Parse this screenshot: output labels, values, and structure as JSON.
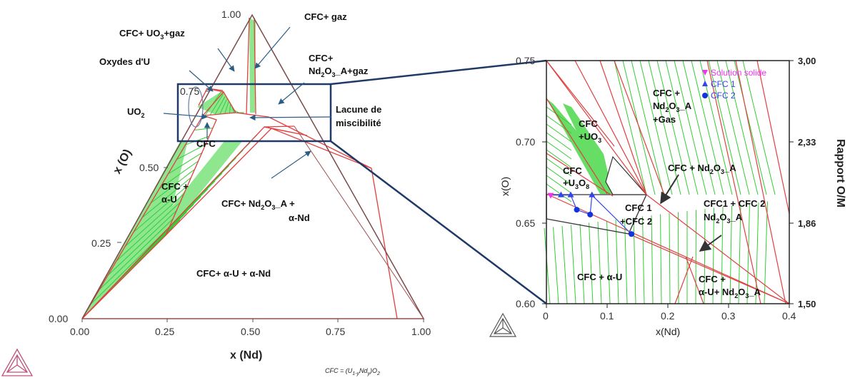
{
  "chart_data": [
    {
      "type": "ternary phase diagram",
      "vertex_top_label": "1.00",
      "x_ticks": [
        "0.00",
        "0.25",
        "0.50",
        "0.75",
        "1.00"
      ],
      "y_ticks": [
        "0.25",
        "0.50",
        "0.75",
        "1.00"
      ],
      "y_origin": "0.00",
      "xlabel": "x (Nd)",
      "ylabel": "x (O)",
      "regions": [
        "CFC+ gaz",
        "CFC+ UO3+gaz",
        "Oxydes d'U",
        "CFC+ Nd2O3_A+gaz",
        "UO2",
        "Lacune de miscibilité",
        "CFC",
        "CFC + α-U",
        "CFC+ Nd2O3_A + α-Nd",
        "CFC+ α-U + α-Nd"
      ],
      "footnote": "CFC = (U1-yNdy)O2",
      "colors": {
        "tie_lines": "#33cc33",
        "boundaries": "#e04040",
        "frame": "#7a4a4a",
        "zoom_box": "#1f3a66"
      }
    },
    {
      "type": "scatter",
      "xlabel": "x(Nd)",
      "ylabel": "x(O)",
      "right_axis_label": "Rapport O/M",
      "x_ticks": [
        "0",
        "0.1",
        "0.2",
        "0.3",
        "0.4"
      ],
      "y_ticks": [
        "0.60",
        "0.65",
        "0.70",
        "0.75"
      ],
      "right_ticks": [
        "1,50",
        "1,86",
        "2,33",
        "3,00"
      ],
      "xlim": [
        0,
        0.4
      ],
      "ylim": [
        0.6,
        0.75
      ],
      "legend_position": "top-right",
      "series": [
        {
          "name": "Solution solide",
          "marker": "triangle-down",
          "color": "#ee33ee",
          "points": [
            [
              0.007,
              0.667
            ]
          ]
        },
        {
          "name": "CFC 1",
          "marker": "triangle-up",
          "color": "#3344ee",
          "points": [
            [
              0.024,
              0.667
            ],
            [
              0.04,
              0.667
            ],
            [
              0.075,
              0.667
            ]
          ]
        },
        {
          "name": "CFC 2",
          "marker": "circle",
          "color": "#1133dd",
          "points": [
            [
              0.05,
              0.658
            ],
            [
              0.072,
              0.655
            ],
            [
              0.14,
              0.643
            ]
          ]
        }
      ],
      "regions": [
        "CFC + Nd2O3_A +Gas",
        "CFC +UO3",
        "CFC + Nd2O3_A",
        "CFC +U3O8",
        "CFC1 + CFC 2 Nd2O3_A",
        "CFC 1 +CFC 2",
        "CFC + α-U",
        "CFC + α-U+ Nd2O3_A"
      ]
    }
  ],
  "labels": {
    "top_vertex": "1.00",
    "gaz": "CFC+ gaz",
    "uo3_gaz_a": "CFC+ UO",
    "uo3_gaz_sub": "3",
    "uo3_gaz_b": "+gaz",
    "oxydes": "Oxydes d'U",
    "nd2o3_gaz_1": "CFC+",
    "nd2o3_gaz_2a": "Nd",
    "nd2o3_gaz_sub1": "2",
    "nd2o3_gaz_2b": "O",
    "nd2o3_gaz_sub2": "3",
    "nd2o3_gaz_2c": "_A+gaz",
    "uo2_a": "UO",
    "uo2_sub": "2",
    "lacune_1": "Lacune de",
    "lacune_2": "miscibilité",
    "cfc": "CFC",
    "cfc_au_1": "CFC +",
    "cfc_au_2": "α-U",
    "cfc_nd_1a": "CFC+ Nd",
    "cfc_nd_sub1": "2",
    "cfc_nd_1b": "O",
    "cfc_nd_sub2": "3",
    "cfc_nd_1c": "_A +",
    "cfc_nd_2": "α-Nd",
    "cfc_au_and": "CFC+ α-U + α-Nd",
    "xo_axis": "x (O)",
    "xnd_axis": "x (Nd)",
    "tick_075": "0.75",
    "tick_050": "0.50",
    "tick_025": "0.25",
    "tick_000": "0.00",
    "xt_000": "0.00",
    "xt_025": "0.25",
    "xt_050": "0.50",
    "xt_075": "0.75",
    "xt_100": "1.00",
    "footnote_a": "CFC = (U",
    "footnote_sub1": "1-y",
    "footnote_b": "Nd",
    "footnote_sub2": "y",
    "footnote_c": ")O",
    "footnote_sub3": "2",
    "r_yt_075": "0.75",
    "r_yt_070": "0.70",
    "r_yt_065": "0.65",
    "r_yt_060": "0.60",
    "r_xt_0": "0",
    "r_xt_01": "0.1",
    "r_xt_02": "0.2",
    "r_xt_03": "0.3",
    "r_xt_04": "0.4",
    "r_rt_300": "3,00",
    "r_rt_233": "2,33",
    "r_rt_186": "1,86",
    "r_rt_150": "1,50",
    "r_xlabel": "x(Nd)",
    "r_ylabel": "x(O)",
    "r_rlabel": "Rapport O/M",
    "leg_ss": "Solution solide",
    "leg_cfc1": "CFC 1",
    "leg_cfc2": "CFC 2",
    "r_gas_1": "CFC +",
    "r_gas_2a": "Nd",
    "r_gas_sub1": "2",
    "r_gas_2b": "O",
    "r_gas_sub2": "3",
    "r_gas_2c": "_A",
    "r_gas_3": "+Gas",
    "r_uo3_1": "CFC",
    "r_uo3_2a": "+UO",
    "r_uo3_sub": "3",
    "r_nd_a": "CFC  + Nd",
    "r_nd_sub1": "2",
    "r_nd_b": "O",
    "r_nd_sub2": "3",
    "r_nd_c": "_A",
    "r_u3o8_1": "CFC",
    "r_u3o8_2a": "+U",
    "r_u3o8_sub1": "3",
    "r_u3o8_2b": "O",
    "r_u3o8_sub2": "8",
    "r_cfc12_1": "CFC1  + CFC 2",
    "r_cfc12_2a": "Nd",
    "r_cfc12_sub1": "2",
    "r_cfc12_2b": "O",
    "r_cfc12_sub2": "3",
    "r_cfc12_2c": "_A",
    "r_c12_1": "CFC 1",
    "r_c12_2": "+CFC 2",
    "r_au": "CFC + α-U",
    "r_aun_1": "CFC +",
    "r_aun_2a": "α-U+ Nd",
    "r_aun_sub1": "2",
    "r_aun_2b": "O",
    "r_aun_sub2": "3",
    "r_aun_2c": "_A"
  }
}
